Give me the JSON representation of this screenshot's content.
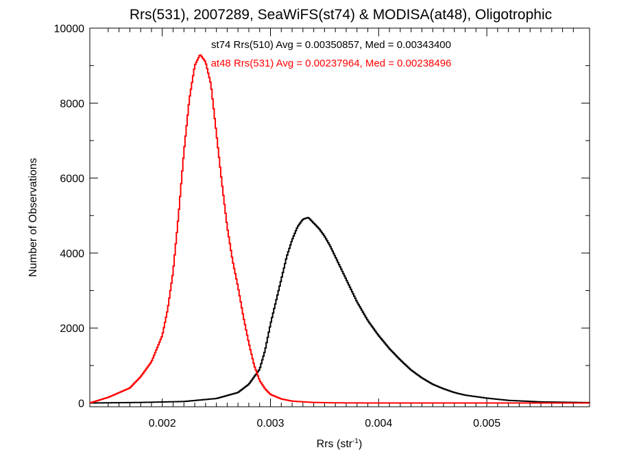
{
  "chart_data": {
    "type": "histogram",
    "title": "Rrs(531), 2007289, SeaWiFS(st74) & MODISA(at48), Oligotrophic",
    "xlabel": {
      "base": "Rrs (str",
      "sup": "-1",
      "close": ")"
    },
    "ylabel": "Number of Observations",
    "xlim": [
      0.00133,
      0.00595
    ],
    "ylim": [
      -100,
      10000
    ],
    "x_ticks": [
      {
        "value": 0.002,
        "label": "0.002"
      },
      {
        "value": 0.003,
        "label": "0.003"
      },
      {
        "value": 0.004,
        "label": "0.004"
      },
      {
        "value": 0.005,
        "label": "0.005"
      }
    ],
    "y_ticks": [
      {
        "value": 0,
        "label": "0"
      },
      {
        "value": 2000,
        "label": "2000"
      },
      {
        "value": 4000,
        "label": "4000"
      },
      {
        "value": 6000,
        "label": "6000"
      },
      {
        "value": 8000,
        "label": "8000"
      },
      {
        "value": 10000,
        "label": "10000"
      }
    ],
    "grid": false,
    "series": [
      {
        "color": "#000000",
        "annotation": "st74 Rrs(510) Avg = 0.00350857, Med = 0.00343400",
        "x": [
          0.00133,
          0.0018,
          0.0022,
          0.0025,
          0.0027,
          0.0028,
          0.0029,
          0.00295,
          0.003,
          0.00305,
          0.0031,
          0.00315,
          0.0032,
          0.00325,
          0.0033,
          0.00335,
          0.0034,
          0.00345,
          0.0035,
          0.00355,
          0.0036,
          0.00365,
          0.0037,
          0.0038,
          0.0039,
          0.004,
          0.0041,
          0.0042,
          0.0043,
          0.0044,
          0.0045,
          0.0046,
          0.0047,
          0.0048,
          0.005,
          0.0052,
          0.0055,
          0.00595
        ],
        "y": [
          0,
          15,
          40,
          120,
          280,
          500,
          900,
          1400,
          2100,
          2700,
          3300,
          3900,
          4350,
          4700,
          4900,
          4950,
          4800,
          4650,
          4450,
          4200,
          3900,
          3600,
          3300,
          2700,
          2200,
          1800,
          1450,
          1150,
          880,
          670,
          500,
          380,
          280,
          210,
          130,
          70,
          30,
          10
        ]
      },
      {
        "color": "#ff0000",
        "annotation": "at48 Rrs(531) Avg = 0.00237964, Med = 0.00238496",
        "x": [
          0.00133,
          0.0015,
          0.0017,
          0.0018,
          0.0019,
          0.002,
          0.00205,
          0.0021,
          0.00215,
          0.0022,
          0.00225,
          0.0023,
          0.00235,
          0.0024,
          0.00245,
          0.0025,
          0.00255,
          0.0026,
          0.00265,
          0.0027,
          0.00275,
          0.0028,
          0.00285,
          0.0029,
          0.00295,
          0.003,
          0.0031,
          0.0032,
          0.0034,
          0.0036,
          0.004,
          0.00595
        ],
        "y": [
          0,
          150,
          400,
          700,
          1100,
          1800,
          2500,
          3500,
          5000,
          6700,
          8100,
          9000,
          9300,
          9100,
          8500,
          7200,
          5900,
          4700,
          3800,
          3100,
          2300,
          1600,
          1000,
          600,
          380,
          230,
          110,
          50,
          15,
          5,
          0,
          0
        ]
      }
    ]
  }
}
